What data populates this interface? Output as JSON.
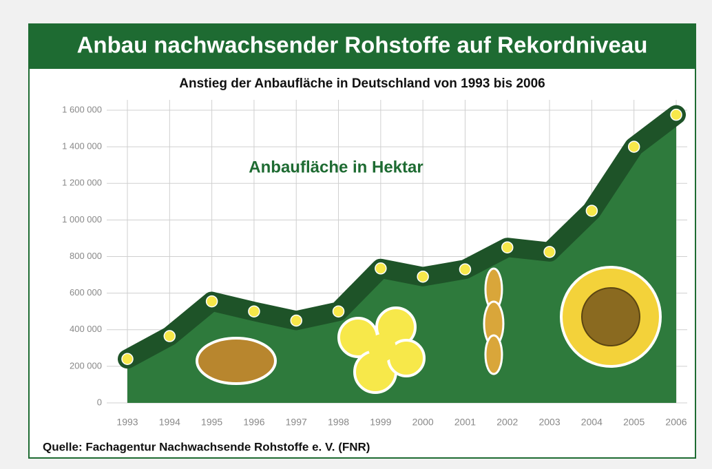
{
  "chart_data": {
    "type": "area",
    "title": "Anbau nachwachsender Rohstoffe auf Rekordniveau",
    "subtitle": "Anstieg der Anbaufläche in Deutschland von 1993 bis 2006",
    "annotation": "Anbaufläche in Hektar",
    "source": "Quelle: Fachagentur Nachwachsende Rohstoffe e. V. (FNR)",
    "categories": [
      "1993",
      "1994",
      "1995",
      "1996",
      "1997",
      "1998",
      "1999",
      "2000",
      "2001",
      "2002",
      "2003",
      "2004",
      "2005",
      "2006"
    ],
    "values": [
      240000,
      365000,
      555000,
      500000,
      450000,
      500000,
      735000,
      690000,
      730000,
      850000,
      825000,
      1050000,
      1400000,
      1575000
    ],
    "color": "#2e7a3c",
    "line_color": "#1e5328",
    "marker_color": "#f7e84a",
    "ylim": [
      0,
      1600000
    ],
    "yticks": [
      0,
      {
        "value": 200000,
        "label": "200 000"
      },
      {
        "value": 400000,
        "label": "400 000"
      },
      {
        "value": 600000,
        "label": "600 000"
      },
      {
        "value": 800000,
        "label": "800 000"
      },
      {
        "value": 1000000,
        "label": "1 000 000"
      },
      {
        "value": 1200000,
        "label": "1 200 000"
      },
      {
        "value": 1400000,
        "label": "1 400 000"
      },
      {
        "value": 1600000,
        "label": "1 600 000"
      }
    ],
    "grid": true
  }
}
